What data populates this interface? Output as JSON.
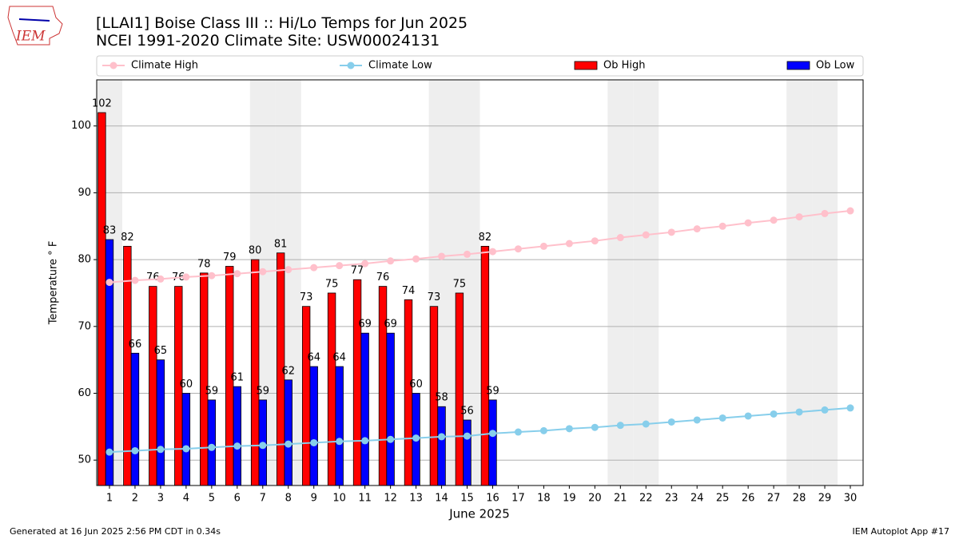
{
  "chart_data": {
    "type": "bar",
    "title": "[LLAI1] Boise Class III :: Hi/Lo Temps for Jun 2025",
    "subtitle": "NCEI 1991-2020 Climate Site: USW00024131",
    "logo_text": "IEM",
    "xlabel": "June 2025",
    "ylabel": "Temperature ° F",
    "footer_left": "Generated at 16 Jun 2025 2:56 PM CDT in 0.34s",
    "footer_right": "IEM Autoplot App #17",
    "x": [
      1,
      2,
      3,
      4,
      5,
      6,
      7,
      8,
      9,
      10,
      11,
      12,
      13,
      14,
      15,
      16,
      17,
      18,
      19,
      20,
      21,
      22,
      23,
      24,
      25,
      26,
      27,
      28,
      29,
      30
    ],
    "xlim": [
      0.5,
      30.5
    ],
    "xticks": [
      1,
      2,
      3,
      4,
      5,
      6,
      7,
      8,
      9,
      10,
      11,
      12,
      13,
      14,
      15,
      16,
      17,
      18,
      19,
      20,
      21,
      22,
      23,
      24,
      25,
      26,
      27,
      28,
      29,
      30
    ],
    "ylim": [
      46.2,
      106.9
    ],
    "yticks": [
      50,
      60,
      70,
      80,
      90,
      100
    ],
    "grid": true,
    "shaded_days": [
      1,
      7,
      8,
      14,
      15,
      21,
      22,
      28,
      29
    ],
    "shade_color": "#eeeeee",
    "series": [
      {
        "name": "Climate High",
        "kind": "line",
        "color": "#ffc0cb",
        "values": [
          76.6,
          76.9,
          77.1,
          77.4,
          77.6,
          77.9,
          78.2,
          78.5,
          78.8,
          79.1,
          79.4,
          79.8,
          80.1,
          80.5,
          80.8,
          81.2,
          81.6,
          82.0,
          82.4,
          82.8,
          83.3,
          83.7,
          84.1,
          84.6,
          85.0,
          85.5,
          85.9,
          86.4,
          86.9,
          87.3
        ]
      },
      {
        "name": "Climate Low",
        "kind": "line",
        "color": "#87ceeb",
        "values": [
          51.2,
          51.4,
          51.6,
          51.7,
          51.9,
          52.1,
          52.2,
          52.4,
          52.6,
          52.8,
          52.9,
          53.1,
          53.3,
          53.5,
          53.6,
          54.0,
          54.2,
          54.4,
          54.7,
          54.9,
          55.2,
          55.4,
          55.7,
          56.0,
          56.3,
          56.6,
          56.9,
          57.2,
          57.5,
          57.8
        ]
      },
      {
        "name": "Ob High",
        "kind": "bar",
        "color": "#ff0000",
        "values": [
          102,
          82,
          76,
          76,
          78,
          79,
          80,
          81,
          73,
          75,
          77,
          76,
          74,
          73,
          75,
          82,
          null,
          null,
          null,
          null,
          null,
          null,
          null,
          null,
          null,
          null,
          null,
          null,
          null,
          null
        ]
      },
      {
        "name": "Ob Low",
        "kind": "bar",
        "color": "#0000ff",
        "values": [
          83,
          66,
          65,
          60,
          59,
          61,
          59,
          62,
          64,
          64,
          69,
          69,
          60,
          58,
          56,
          59,
          null,
          null,
          null,
          null,
          null,
          null,
          null,
          null,
          null,
          null,
          null,
          null,
          null,
          null
        ]
      }
    ]
  }
}
